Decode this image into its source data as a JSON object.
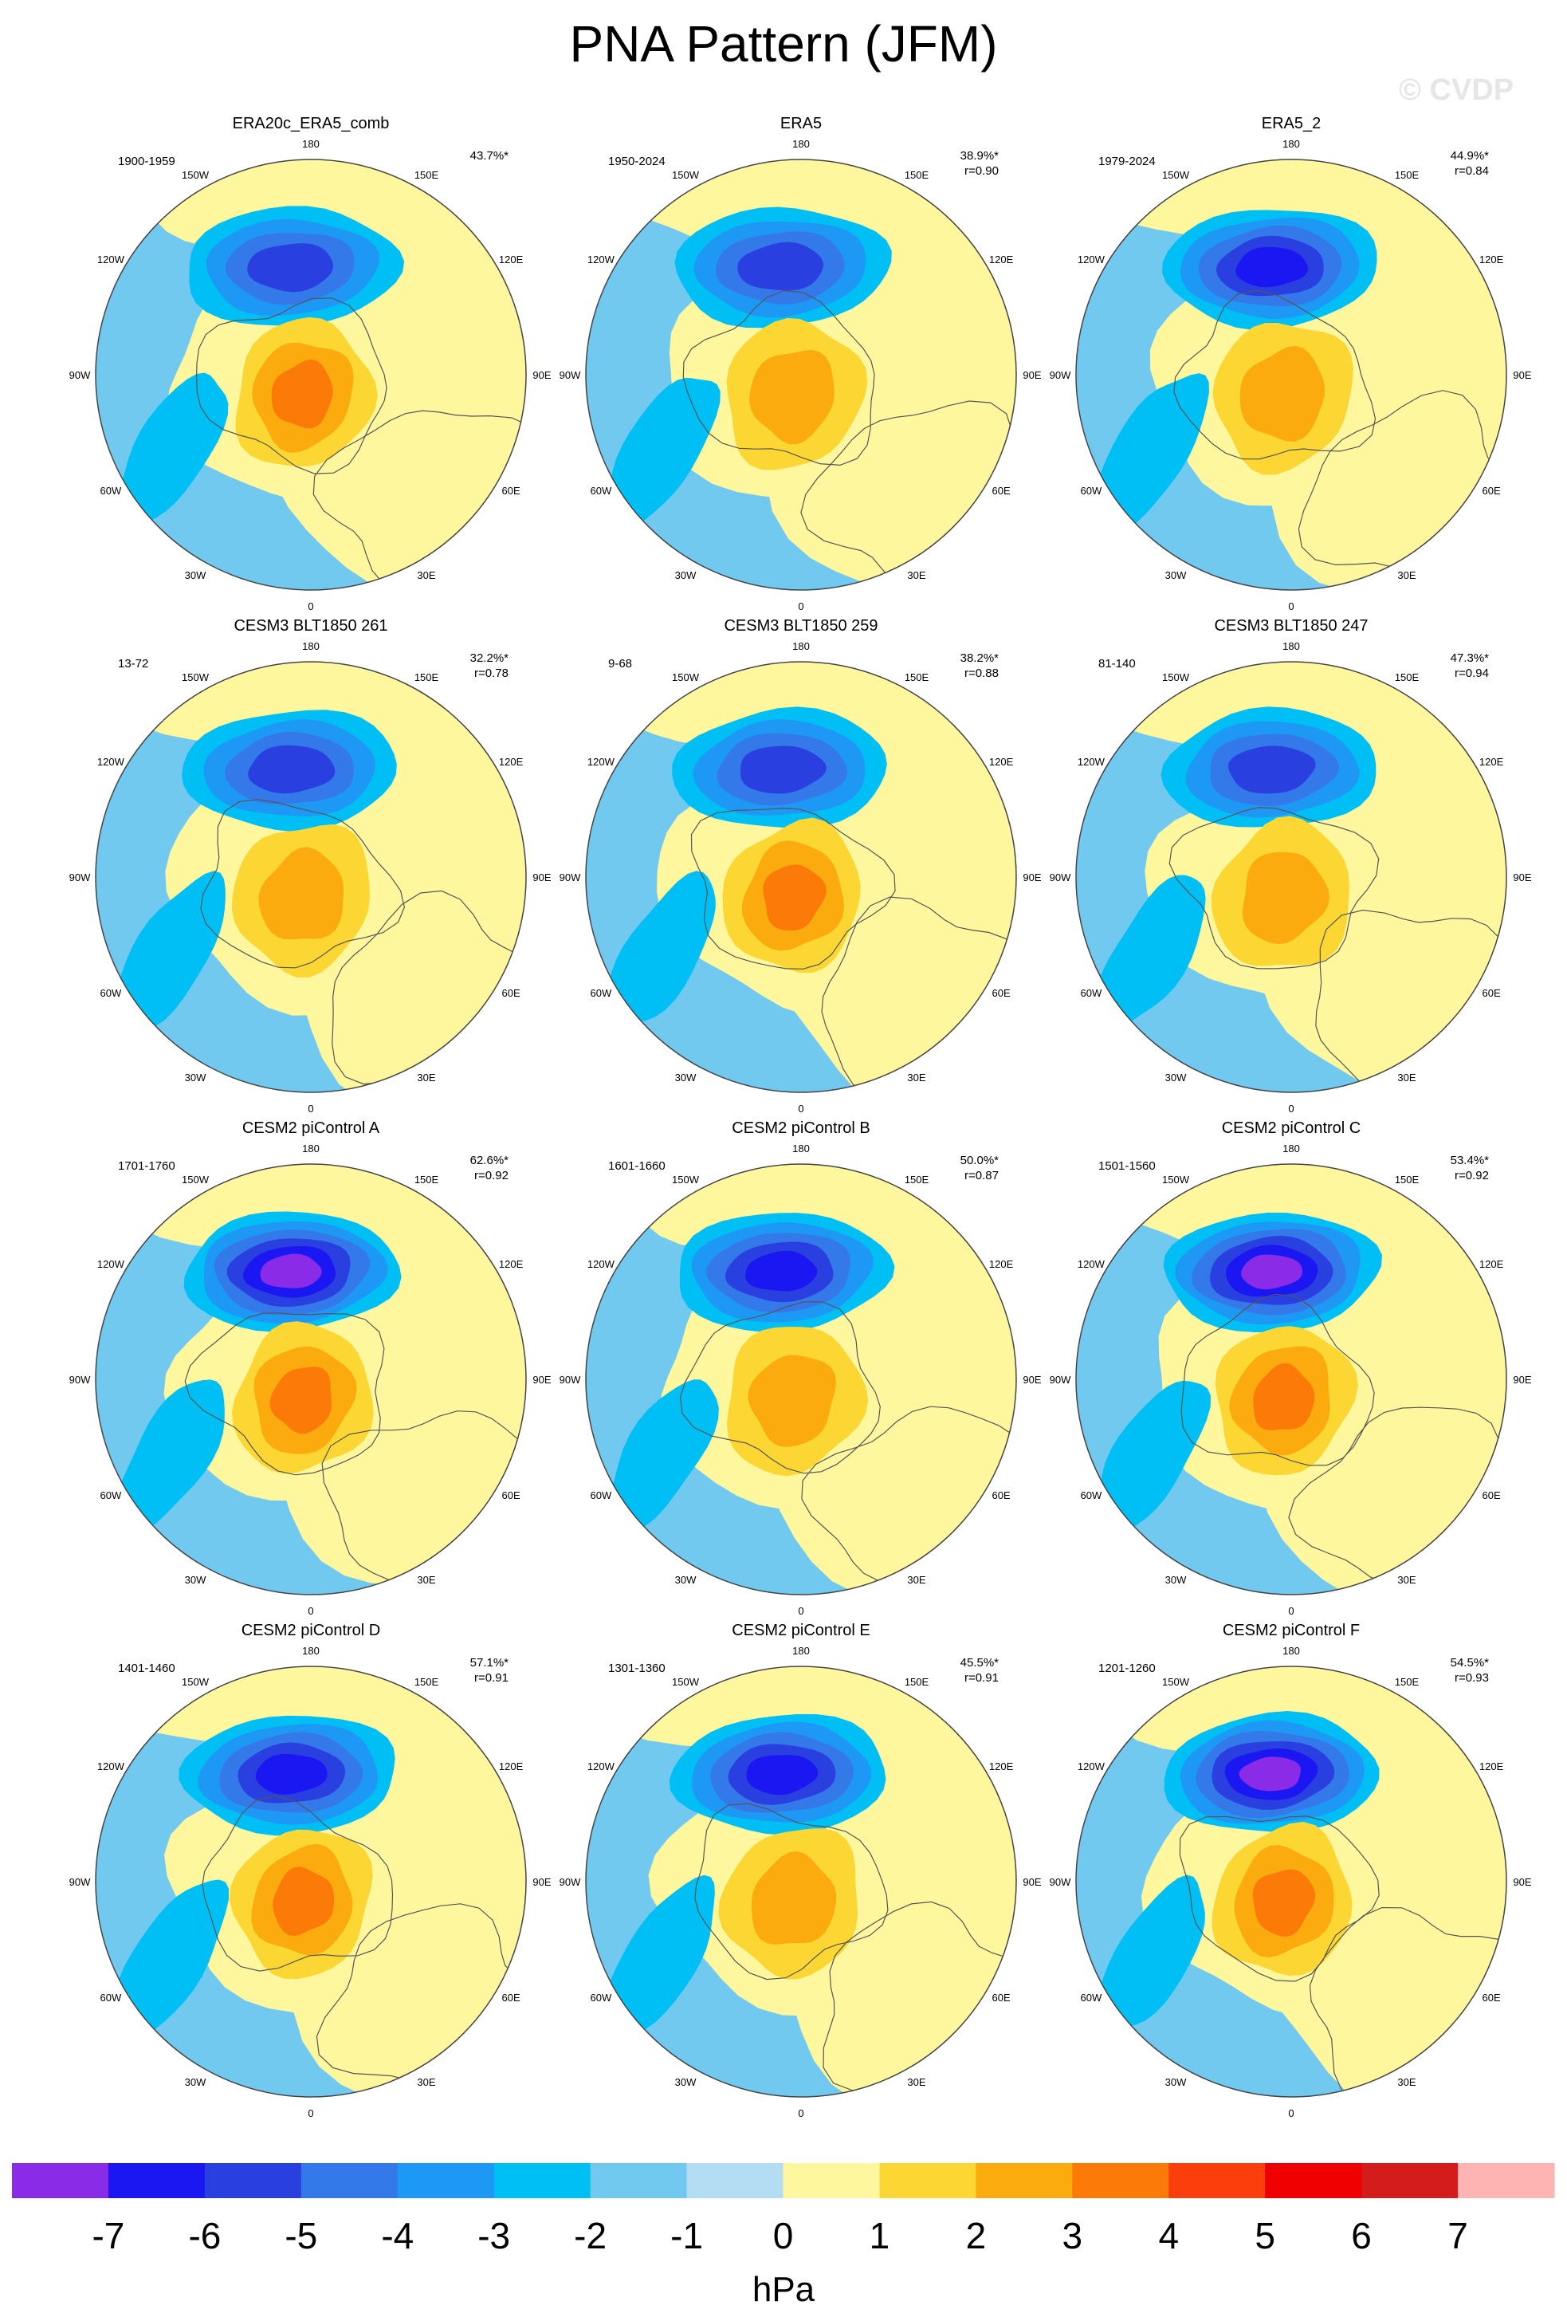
{
  "figure": {
    "title": "PNA Pattern (JFM)",
    "watermark": "© CVDP"
  },
  "map_labels": {
    "longitudes": [
      "180",
      "150E",
      "120E",
      "90E",
      "60E",
      "30E",
      "0",
      "30W",
      "60W",
      "90W",
      "120W",
      "150W"
    ]
  },
  "panels": [
    {
      "title": "ERA20c_ERA5_comb",
      "years": "1900-1959",
      "pct": "43.7%*",
      "r": "",
      "low_min": -5,
      "high_max": 3
    },
    {
      "title": "ERA5",
      "years": "1950-2024",
      "pct": "38.9%*",
      "r": "r=0.90",
      "low_min": -5,
      "high_max": 2
    },
    {
      "title": "ERA5_2",
      "years": "1979-2024",
      "pct": "44.9%*",
      "r": "r=0.84",
      "low_min": -6,
      "high_max": 2
    },
    {
      "title": "CESM3 BLT1850 261",
      "years": "13-72",
      "pct": "32.2%*",
      "r": "r=0.78",
      "low_min": -5,
      "high_max": 2
    },
    {
      "title": "CESM3 BLT1850 259",
      "years": "9-68",
      "pct": "38.2%*",
      "r": "r=0.88",
      "low_min": -5,
      "high_max": 3
    },
    {
      "title": "CESM3 BLT1850 247",
      "years": "81-140",
      "pct": "47.3%*",
      "r": "r=0.94",
      "low_min": -5,
      "high_max": 2
    },
    {
      "title": "CESM2 piControl A",
      "years": "1701-1760",
      "pct": "62.6%*",
      "r": "r=0.92",
      "low_min": -7,
      "high_max": 3
    },
    {
      "title": "CESM2 piControl B",
      "years": "1601-1660",
      "pct": "50.0%*",
      "r": "r=0.87",
      "low_min": -6,
      "high_max": 2
    },
    {
      "title": "CESM2 piControl C",
      "years": "1501-1560",
      "pct": "53.4%*",
      "r": "r=0.92",
      "low_min": -7,
      "high_max": 3
    },
    {
      "title": "CESM2 piControl D",
      "years": "1401-1460",
      "pct": "57.1%*",
      "r": "r=0.91",
      "low_min": -6,
      "high_max": 3
    },
    {
      "title": "CESM2 piControl E",
      "years": "1301-1360",
      "pct": "45.5%*",
      "r": "r=0.91",
      "low_min": -6,
      "high_max": 2
    },
    {
      "title": "CESM2 piControl F",
      "years": "1201-1260",
      "pct": "54.5%*",
      "r": "r=0.93",
      "low_min": -7,
      "high_max": 3
    }
  ],
  "colorbar": {
    "labels": [
      "-7",
      "-6",
      "-5",
      "-4",
      "-3",
      "-2",
      "-1",
      "0",
      "1",
      "2",
      "3",
      "4",
      "5",
      "6",
      "7"
    ],
    "colors": [
      "#8a2be8",
      "#1a17f2",
      "#2a3fe0",
      "#3479ea",
      "#1e98f5",
      "#00bff5",
      "#72c9f0",
      "#b4dcf2",
      "#fff79e",
      "#fcd733",
      "#fcab0e",
      "#fc7b08",
      "#fc3d0c",
      "#f00000",
      "#d41c1c",
      "#ffb4b4"
    ],
    "units": "hPa"
  },
  "map_colors": {
    "land_outline": "#555555",
    "frame": "#444444"
  }
}
